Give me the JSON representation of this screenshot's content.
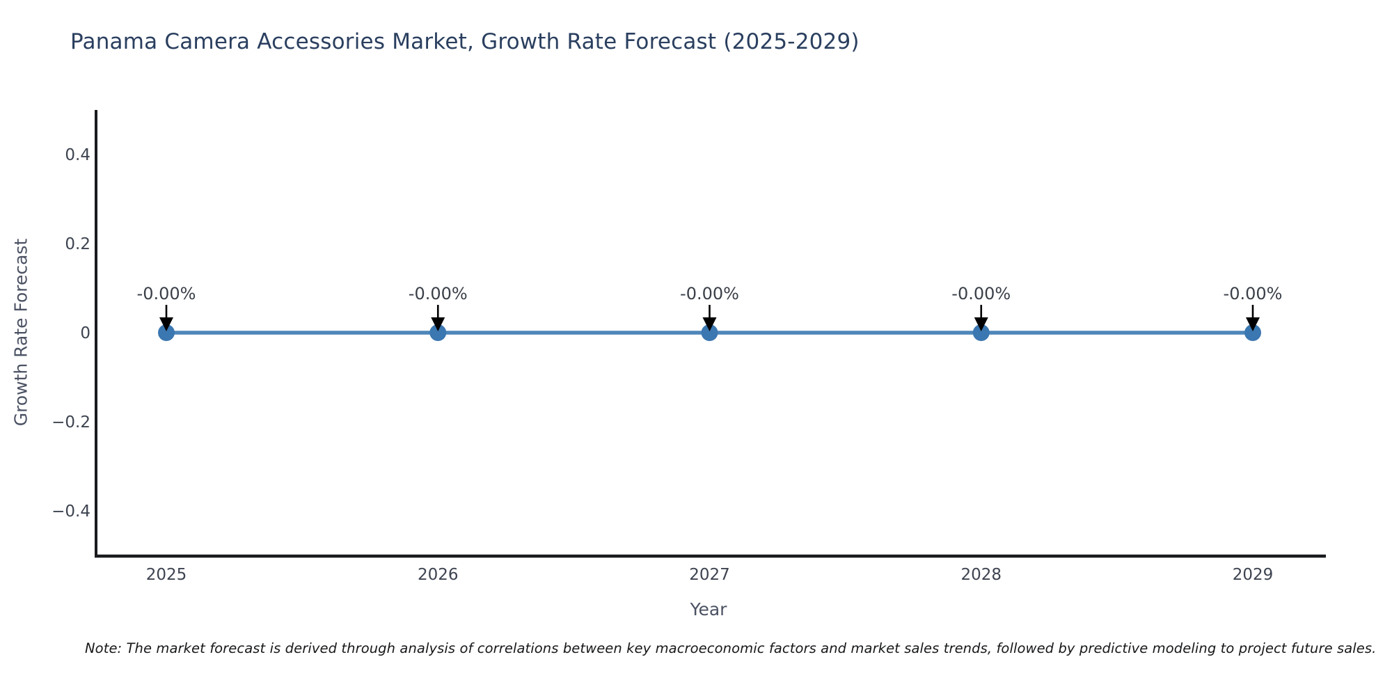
{
  "title": "Panama Camera Accessories Market, Growth Rate Forecast (2025-2029)",
  "note": "Note: The market forecast is derived through analysis of correlations between key macroeconomic factors and market sales trends, followed by predictive modeling to project future sales.",
  "chart_data": {
    "type": "line",
    "title": "Panama Camera Accessories Market, Growth Rate Forecast (2025-2029)",
    "xlabel": "Year",
    "ylabel": "Growth Rate Forecast",
    "categories": [
      "2025",
      "2026",
      "2027",
      "2028",
      "2029"
    ],
    "series": [
      {
        "name": "Growth Rate Forecast",
        "values": [
          0,
          0,
          0,
          0,
          0
        ]
      }
    ],
    "point_labels": [
      "-0.00%",
      "-0.00%",
      "-0.00%",
      "-0.00%",
      "-0.00%"
    ],
    "ylim": [
      -0.5,
      0.5
    ],
    "yticks": [
      {
        "value": 0.4,
        "label": "0.4"
      },
      {
        "value": 0.2,
        "label": "0.2"
      },
      {
        "value": 0.0,
        "label": "0"
      },
      {
        "value": -0.2,
        "label": "−0.2"
      },
      {
        "value": -0.4,
        "label": "−0.4"
      }
    ],
    "grid": false,
    "legend_position": "none",
    "annotation_arrow": "down",
    "colors": {
      "line": "#4d86ba",
      "marker": "#3b77b1",
      "arrow": "#000000",
      "title": "#2a3f5f",
      "tick_label": "#3d4350",
      "axis_label": "#4b5263",
      "annotation_label": "#3a3f48",
      "axis_line": "#1a1b1e",
      "note_text": "#17181a",
      "background": "#ffffff"
    }
  }
}
